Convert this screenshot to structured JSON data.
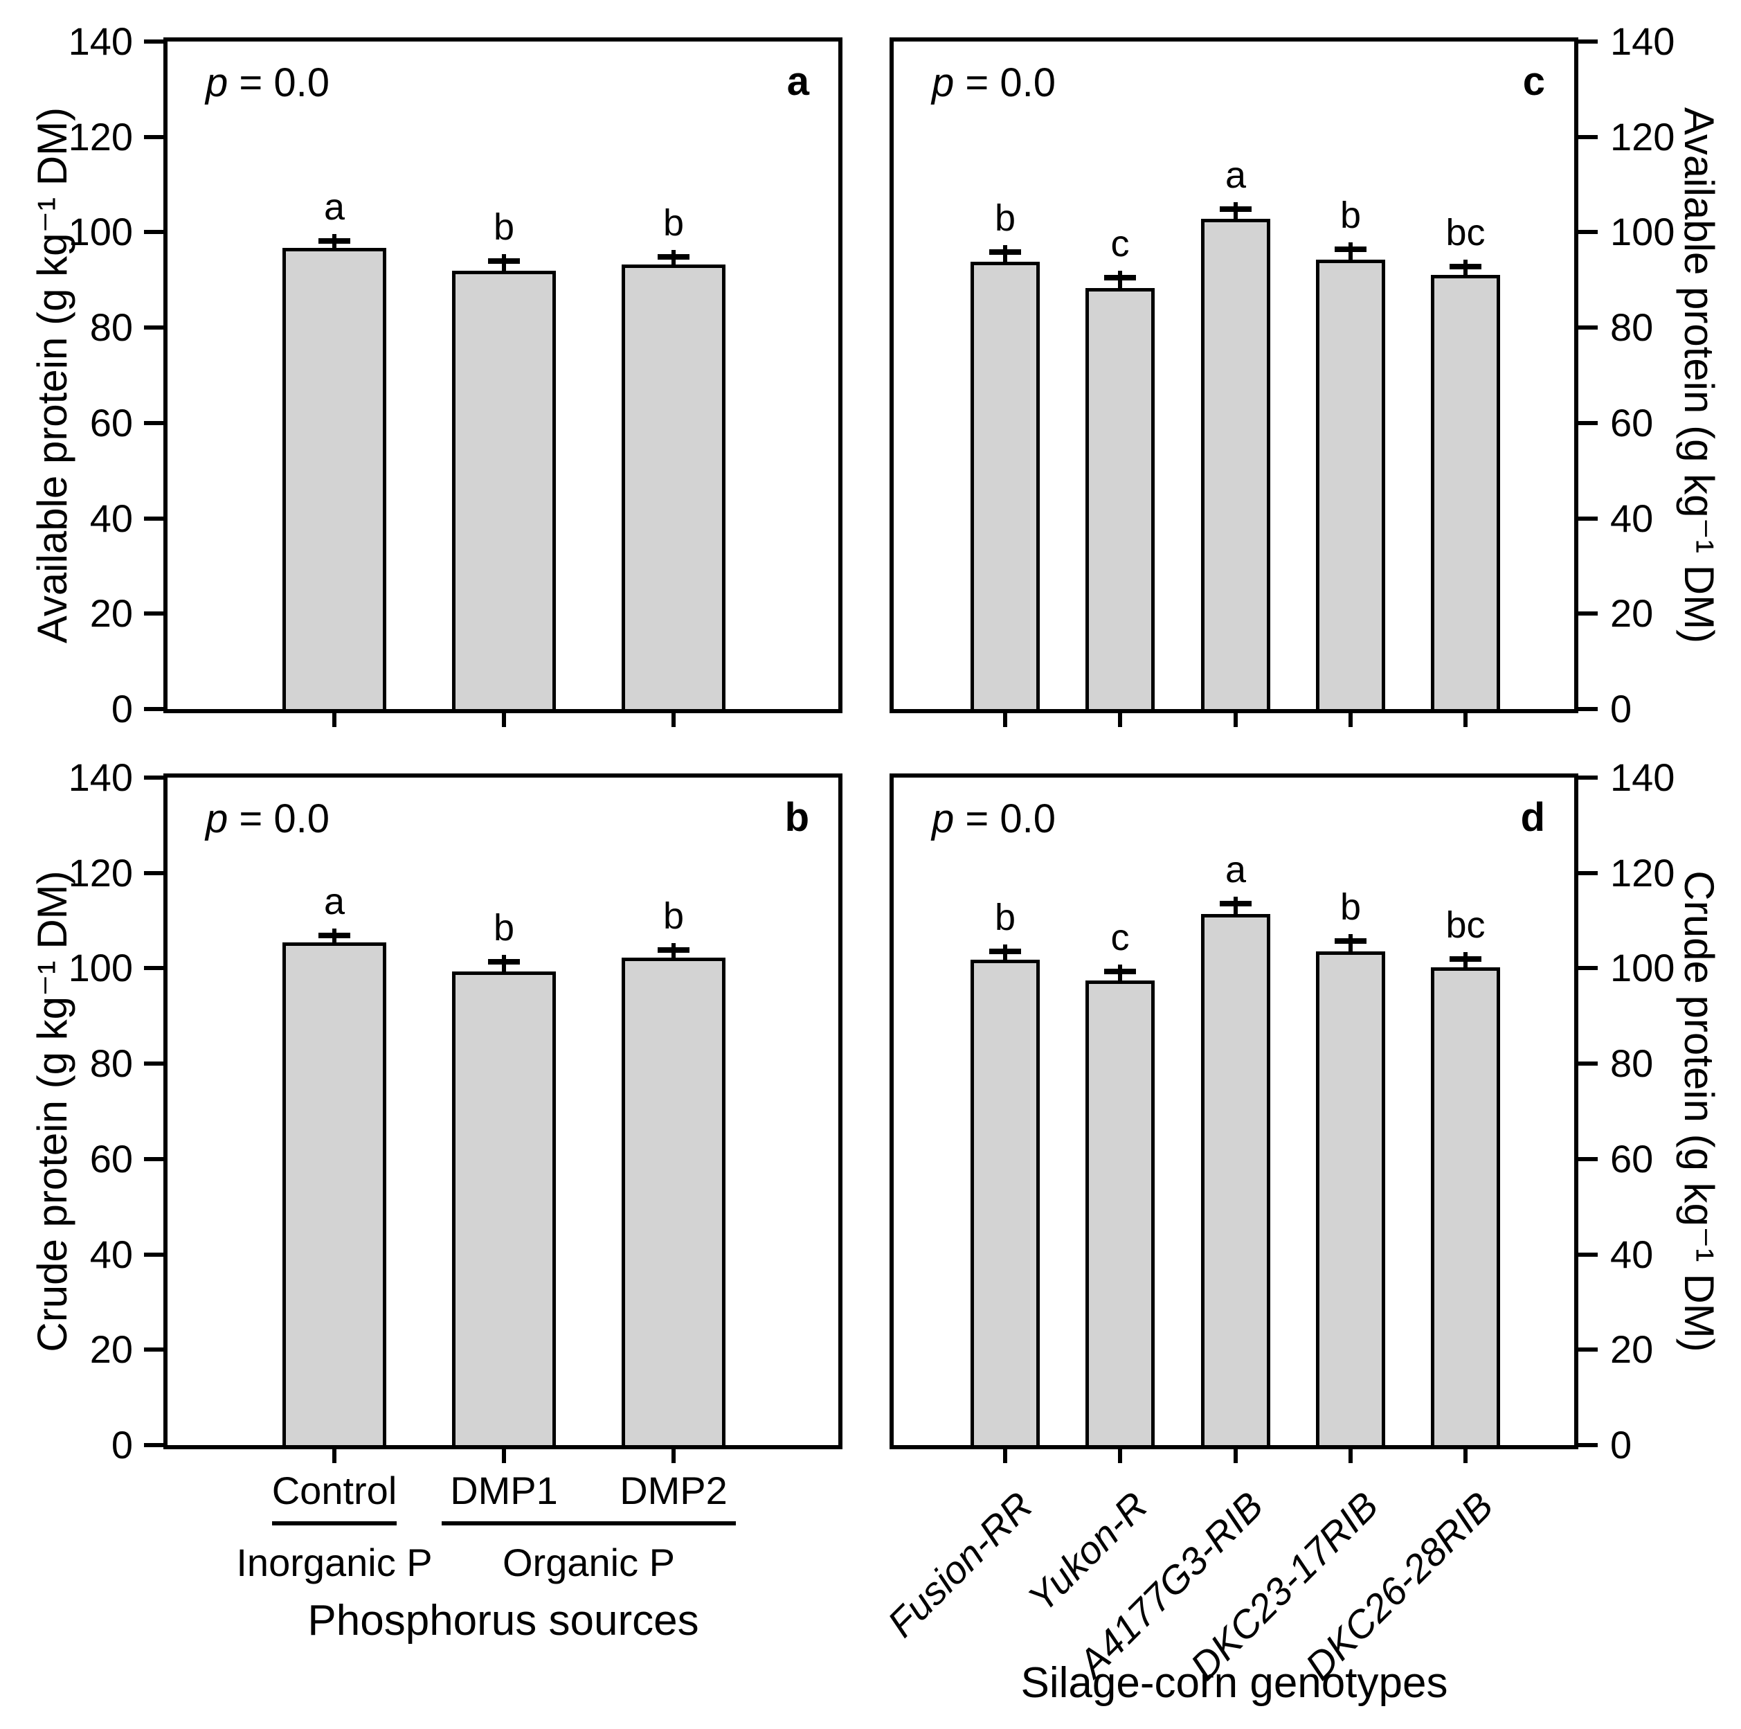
{
  "style": {
    "bar_fill": "#d3d3d3",
    "bar_border": "#000000",
    "background": "#ffffff",
    "text_color": "#000000"
  },
  "p_display": {
    "symbol": "p",
    "rest": " = 0.0"
  },
  "y_ticks": [
    0,
    20,
    40,
    60,
    80,
    100,
    120,
    140
  ],
  "chart_data": [
    {
      "id": "a",
      "type": "bar",
      "position": "top-left",
      "panel_letter": "a",
      "annotation": "p = 0.0",
      "ylabel": "Available protein (g kg⁻¹ DM)",
      "ylabel_side": "left",
      "xlabel": "Phosphorus sources",
      "ylim": [
        0,
        140
      ],
      "yticks": [
        0,
        20,
        40,
        60,
        80,
        100,
        120,
        140
      ],
      "categories": [
        "Control",
        "DMP1",
        "DMP2"
      ],
      "values": [
        96.7,
        92.0,
        93.2
      ],
      "errors": [
        1.5,
        2.0,
        1.6
      ],
      "sig_letters": [
        "a",
        "b",
        "b"
      ],
      "grid": false
    },
    {
      "id": "c",
      "type": "bar",
      "position": "top-right",
      "panel_letter": "c",
      "annotation": "p = 0.0",
      "ylabel": "Available protein (g kg⁻¹ DM)",
      "ylabel_side": "right",
      "xlabel": "Silage-corn genotypes",
      "ylim": [
        0,
        140
      ],
      "yticks": [
        0,
        20,
        40,
        60,
        80,
        100,
        120,
        140
      ],
      "categories": [
        "Fusion-RR",
        "Yukon-R",
        "A4177G3-RIB",
        "DKC23-17RIB",
        "DKC26-28RIB"
      ],
      "values": [
        93.8,
        88.3,
        102.8,
        94.3,
        91.0
      ],
      "errors": [
        2.0,
        2.2,
        2.0,
        2.2,
        1.8
      ],
      "sig_letters": [
        "b",
        "c",
        "a",
        "b",
        "bc"
      ],
      "grid": false
    },
    {
      "id": "b",
      "type": "bar",
      "position": "bottom-left",
      "panel_letter": "b",
      "annotation": "p = 0.0",
      "ylabel": "Crude protein (g kg⁻¹ DM)",
      "ylabel_side": "left",
      "xlabel": "Phosphorus sources",
      "ylim": [
        0,
        140
      ],
      "yticks": [
        0,
        20,
        40,
        60,
        80,
        100,
        120,
        140
      ],
      "categories": [
        "Control",
        "DMP1",
        "DMP2"
      ],
      "values": [
        105.5,
        99.4,
        102.3
      ],
      "errors": [
        1.4,
        2.0,
        1.5
      ],
      "sig_letters": [
        "a",
        "b",
        "b"
      ],
      "grid": false
    },
    {
      "id": "d",
      "type": "bar",
      "position": "bottom-right",
      "panel_letter": "d",
      "annotation": "p = 0.0",
      "ylabel": "Crude protein (g kg⁻¹ DM)",
      "ylabel_side": "right",
      "xlabel": "Silage-corn genotypes",
      "ylim": [
        0,
        140
      ],
      "yticks": [
        0,
        20,
        40,
        60,
        80,
        100,
        120,
        140
      ],
      "categories": [
        "Fusion-RR",
        "Yukon-R",
        "A4177G3-RIB",
        "DKC23-17RIB",
        "DKC26-28RIB"
      ],
      "values": [
        101.8,
        97.4,
        111.4,
        103.5,
        100.2
      ],
      "errors": [
        1.8,
        2.0,
        2.2,
        2.2,
        1.8
      ],
      "sig_letters": [
        "b",
        "c",
        "a",
        "b",
        "bc"
      ],
      "grid": false
    }
  ],
  "x_axis_left": {
    "title": "Phosphorus sources",
    "tick_labels": [
      "Control",
      "DMP1",
      "DMP2"
    ],
    "groups": [
      {
        "label": "Inorganic P",
        "span": [
          0,
          0
        ]
      },
      {
        "label": "Organic P",
        "span": [
          1,
          2
        ]
      }
    ]
  },
  "x_axis_right": {
    "title": "Silage-corn genotypes",
    "tick_labels": [
      "Fusion-RR",
      "Yukon-R",
      "A4177G3-RIB",
      "DKC23-17RIB",
      "DKC26-28RIB"
    ]
  }
}
